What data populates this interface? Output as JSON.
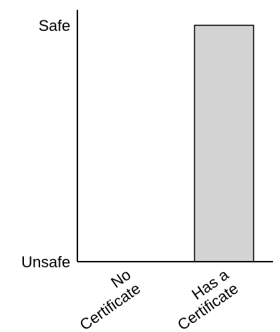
{
  "chart_data": {
    "type": "bar",
    "categories": [
      [
        "No",
        "Certificate"
      ],
      [
        "Has a",
        "Certificate"
      ]
    ],
    "values": [
      0,
      1
    ],
    "ylim": [
      0,
      1
    ],
    "y_tick_labels": [
      "Unsafe",
      "Safe"
    ],
    "grid": false,
    "legend": "none",
    "bar_color": "#d3d3d3",
    "axis_color": "#000000"
  }
}
